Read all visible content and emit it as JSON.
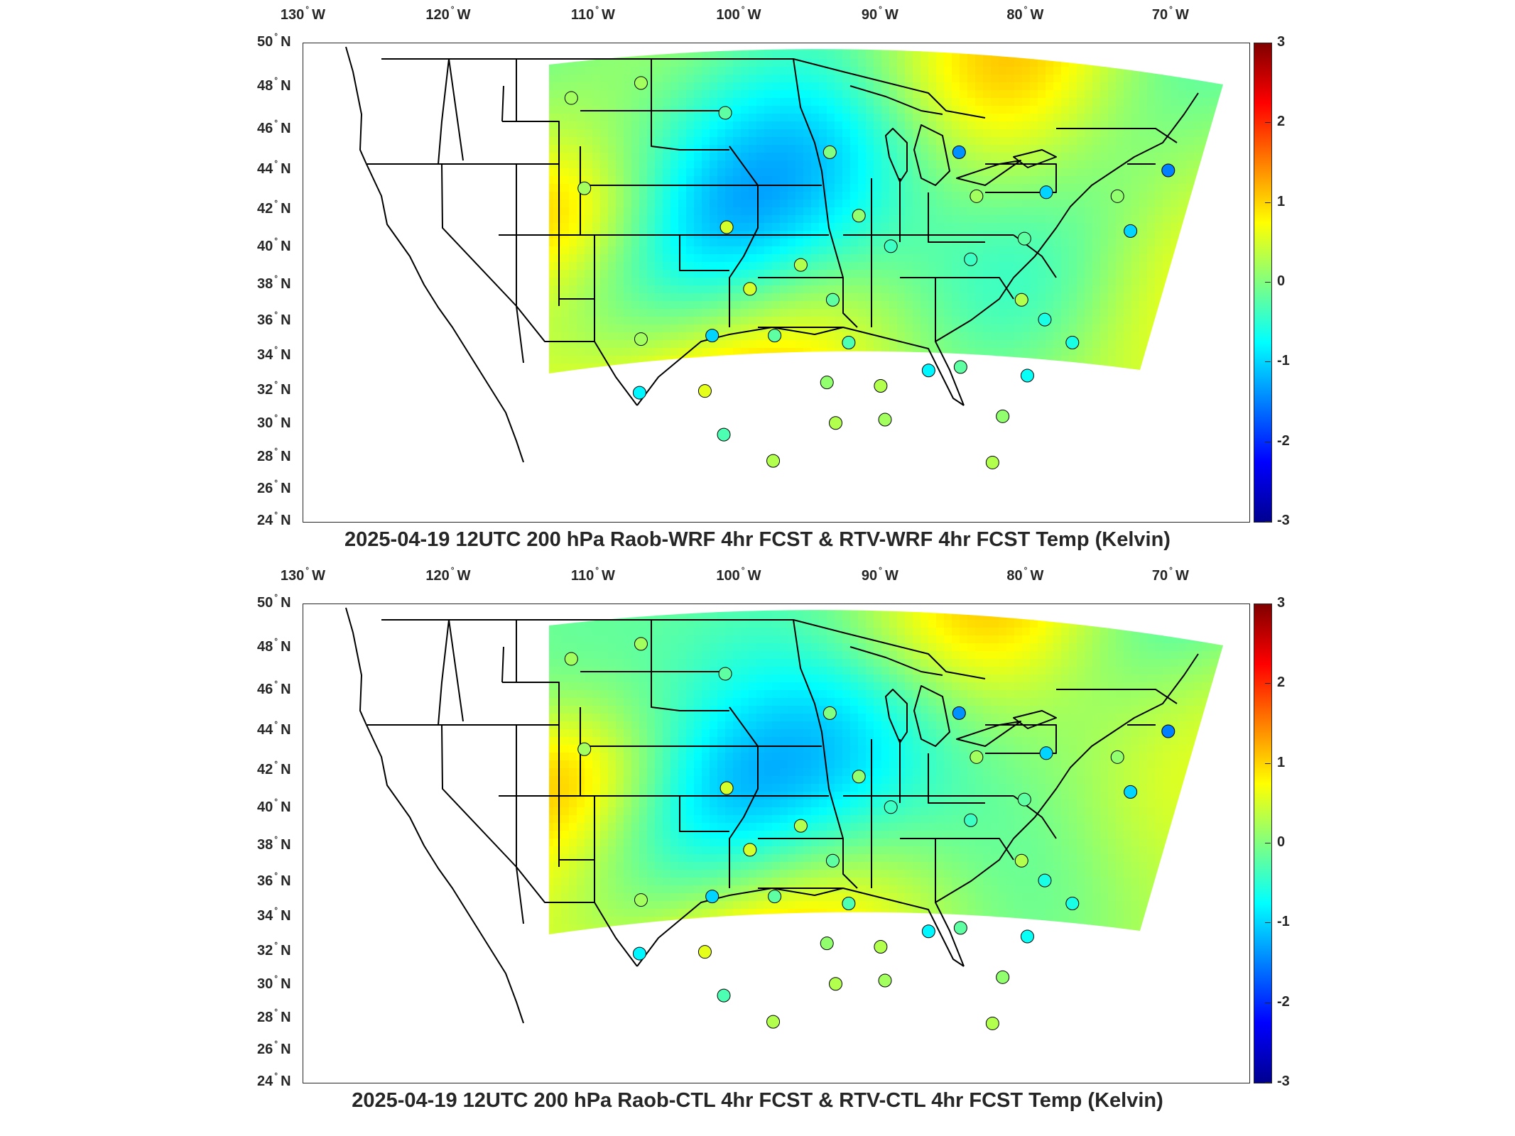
{
  "panels": [
    {
      "title": "2025-04-19 12UTC 200 hPa Raob-WRF 4hr FCST & RTV-WRF 4hr FCST Temp (Kelvin)"
    },
    {
      "title": "2025-04-19 12UTC 200 hPa Raob-CTL 4hr FCST & RTV-CTL 4hr FCST Temp (Kelvin)"
    }
  ],
  "lon_ticks": [
    {
      "deg": "130",
      "hemi": "W"
    },
    {
      "deg": "120",
      "hemi": "W"
    },
    {
      "deg": "110",
      "hemi": "W"
    },
    {
      "deg": "100",
      "hemi": "W"
    },
    {
      "deg": "90",
      "hemi": "W"
    },
    {
      "deg": "80",
      "hemi": "W"
    },
    {
      "deg": "70",
      "hemi": "W"
    }
  ],
  "lat_ticks": [
    {
      "deg": "50",
      "hemi": "N"
    },
    {
      "deg": "48",
      "hemi": "N"
    },
    {
      "deg": "46",
      "hemi": "N"
    },
    {
      "deg": "44",
      "hemi": "N"
    },
    {
      "deg": "42",
      "hemi": "N"
    },
    {
      "deg": "40",
      "hemi": "N"
    },
    {
      "deg": "38",
      "hemi": "N"
    },
    {
      "deg": "36",
      "hemi": "N"
    },
    {
      "deg": "34",
      "hemi": "N"
    },
    {
      "deg": "32",
      "hemi": "N"
    },
    {
      "deg": "30",
      "hemi": "N"
    },
    {
      "deg": "28",
      "hemi": "N"
    },
    {
      "deg": "26",
      "hemi": "N"
    },
    {
      "deg": "24",
      "hemi": "N"
    }
  ],
  "colorbar": {
    "ticks": [
      "3",
      "2",
      "1",
      "0",
      "-1",
      "-2",
      "-3"
    ],
    "range": [
      -3,
      3
    ],
    "colormap": "jet"
  },
  "stations": [
    {
      "lon": -111.4,
      "lat": 47.5,
      "v": 0.2
    },
    {
      "lon": -106.6,
      "lat": 48.2,
      "v": 0.2
    },
    {
      "lon": -110.5,
      "lat": 43.1,
      "v": 0.2
    },
    {
      "lon": -100.8,
      "lat": 46.8,
      "v": -0.2
    },
    {
      "lon": -93.6,
      "lat": 44.9,
      "v": 0.0
    },
    {
      "lon": -84.7,
      "lat": 44.9,
      "v": -1.4
    },
    {
      "lon": -70.3,
      "lat": 44.0,
      "v": -1.5
    },
    {
      "lon": -73.8,
      "lat": 42.7,
      "v": 0.1
    },
    {
      "lon": -78.7,
      "lat": 42.9,
      "v": -1.0
    },
    {
      "lon": -83.5,
      "lat": 42.7,
      "v": 0.2
    },
    {
      "lon": -91.6,
      "lat": 41.7,
      "v": 0.1
    },
    {
      "lon": -100.7,
      "lat": 41.1,
      "v": 0.5
    },
    {
      "lon": -89.4,
      "lat": 40.1,
      "v": -0.4
    },
    {
      "lon": -80.2,
      "lat": 40.5,
      "v": -0.2
    },
    {
      "lon": -72.9,
      "lat": 40.9,
      "v": -1.0
    },
    {
      "lon": -95.6,
      "lat": 39.1,
      "v": 0.3
    },
    {
      "lon": -83.9,
      "lat": 39.4,
      "v": -0.4
    },
    {
      "lon": -99.1,
      "lat": 37.8,
      "v": 0.5
    },
    {
      "lon": -93.4,
      "lat": 37.2,
      "v": -0.2
    },
    {
      "lon": -80.4,
      "lat": 37.2,
      "v": 0.3
    },
    {
      "lon": -78.8,
      "lat": 36.1,
      "v": -0.6
    },
    {
      "lon": -106.6,
      "lat": 35.0,
      "v": 0.2
    },
    {
      "lon": -101.7,
      "lat": 35.2,
      "v": -1.0
    },
    {
      "lon": -97.4,
      "lat": 35.2,
      "v": -0.2
    },
    {
      "lon": -92.3,
      "lat": 34.8,
      "v": -0.3
    },
    {
      "lon": -76.9,
      "lat": 34.8,
      "v": -0.6
    },
    {
      "lon": -86.8,
      "lat": 33.2,
      "v": -0.8
    },
    {
      "lon": -84.6,
      "lat": 33.4,
      "v": -0.2
    },
    {
      "lon": -80.0,
      "lat": 32.9,
      "v": -0.7
    },
    {
      "lon": -93.8,
      "lat": 32.5,
      "v": 0.1
    },
    {
      "lon": -90.1,
      "lat": 32.3,
      "v": 0.3
    },
    {
      "lon": -106.7,
      "lat": 31.9,
      "v": -0.8
    },
    {
      "lon": -102.2,
      "lat": 32.0,
      "v": 0.6
    },
    {
      "lon": -93.2,
      "lat": 30.1,
      "v": 0.3
    },
    {
      "lon": -89.8,
      "lat": 30.3,
      "v": 0.2
    },
    {
      "lon": -81.7,
      "lat": 30.5,
      "v": 0.1
    },
    {
      "lon": -100.9,
      "lat": 29.4,
      "v": -0.3
    },
    {
      "lon": -97.5,
      "lat": 27.8,
      "v": 0.3
    },
    {
      "lon": -82.4,
      "lat": 27.7,
      "v": 0.3
    }
  ],
  "colors": {
    "land_line": "#000000",
    "frame": "#262626",
    "text": "#262626"
  }
}
